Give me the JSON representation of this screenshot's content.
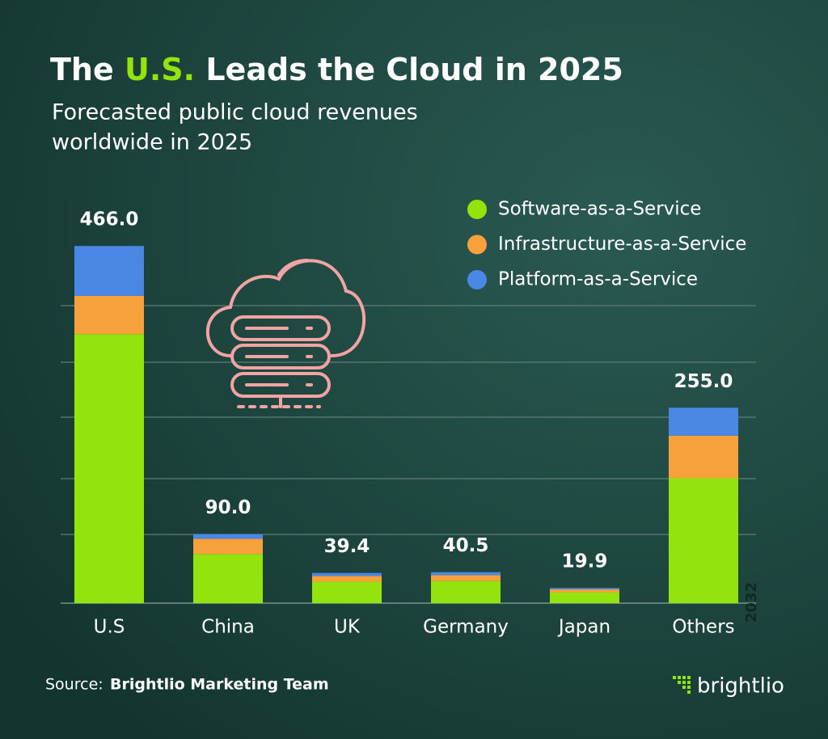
{
  "chart_data": {
    "type": "stacked_bar",
    "title": {
      "before": "The",
      "highlight": "U.S.",
      "after": "Leads the Cloud in 2025"
    },
    "subtitle": [
      "Forecasted public cloud revenues",
      "worldwide in 2025"
    ],
    "categories": [
      "U.S",
      "China",
      "UK",
      "Germany",
      "Japan",
      "Others"
    ],
    "series": [
      {
        "name": "Software-as-a-Service",
        "color": "#93e40c",
        "values": [
          351,
          64,
          27.9,
          28.8,
          14.2,
          163
        ]
      },
      {
        "name": "Infrastructure-as-a-Service",
        "color": "#f6a13c",
        "values": [
          50,
          20,
          7.7,
          7.8,
          3.9,
          55.6
        ]
      },
      {
        "name": "Platform-as-a-Service",
        "color": "#4a88e6",
        "values": [
          65,
          6,
          3.8,
          3.9,
          1.8,
          36.4
        ]
      }
    ],
    "totals": [
      466,
      90,
      39.4,
      40.5,
      19.9,
      255
    ],
    "total_labels": [
      "466.0",
      "90.0",
      "39.4",
      "40.5",
      "19.9",
      "255.0"
    ],
    "ylim": [
      0,
      500
    ],
    "legend": "top-right",
    "source_label": "Source:",
    "source": "Brightlio Marketing Team",
    "brand": "brightlio",
    "side_note": "2032"
  }
}
